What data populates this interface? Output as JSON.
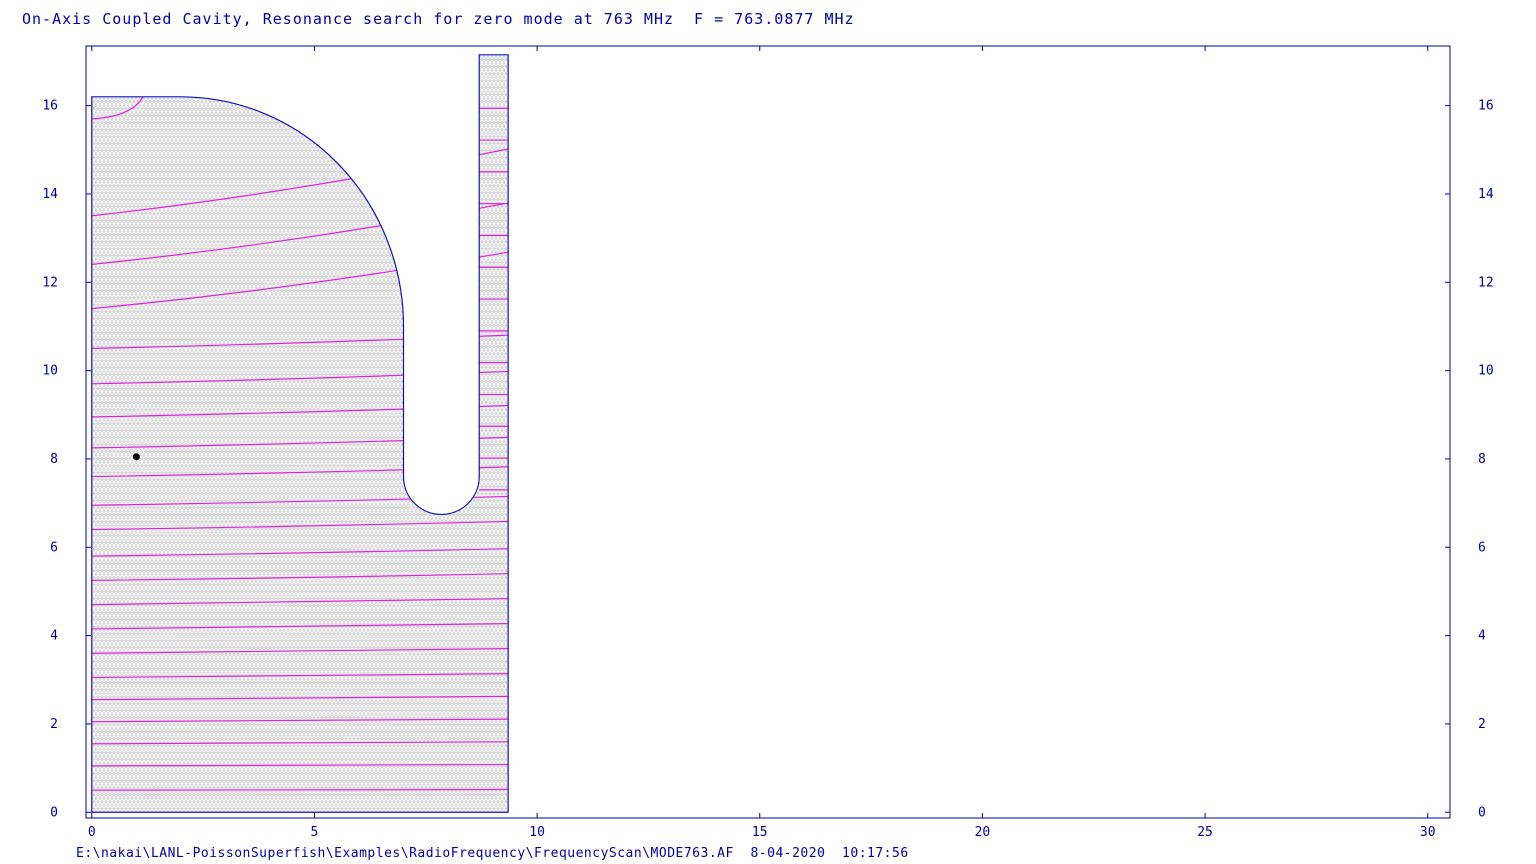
{
  "title": "On-Axis Coupled Cavity, Resonance search for zero mode at 763 MHz  F = 763.0877 MHz",
  "footer": "E:\\nakai\\LANL-PoissonSuperfish\\Examples\\RadioFrequency\\FrequencyScan\\MODE763.AF  8-04-2020  10:17:56",
  "colors": {
    "axis": "#0000aa",
    "mesh": "#bdbdbd",
    "field_lines": "#e020e0",
    "boundary": "#1010c0",
    "marker": "#000000"
  },
  "chart_data": {
    "type": "line",
    "title": "On-Axis Coupled Cavity, Resonance search for zero mode at 763 MHz  F = 763.0877 MHz",
    "xlim": [
      -0.13,
      30.5
    ],
    "ylim": [
      -0.13,
      17.35
    ],
    "x_ticks": [
      0,
      5,
      10,
      15,
      20,
      25,
      30
    ],
    "y_ticks": [
      0,
      2,
      4,
      6,
      8,
      10,
      12,
      14,
      16
    ],
    "x_tick_labels": [
      "0",
      "5",
      "10",
      "15",
      "20",
      "25",
      "30"
    ],
    "y_tick_labels": [
      "0",
      "2",
      "4",
      "6",
      "8",
      "10",
      "12",
      "14",
      "16"
    ],
    "grid": false,
    "geometry": {
      "cavity_outer_top": 16.2,
      "cavity_outer_radius_center": [
        2.0,
        11.0
      ],
      "cavity_wall_x": 7.0,
      "nose_center": [
        7.85,
        7.6
      ],
      "nose_radius": 0.85,
      "slot_x": [
        8.7,
        9.35
      ],
      "slot_top": 17.15,
      "right_edge_x": 9.35,
      "bottom": 0
    },
    "field_line_levels": [
      0.5,
      1.05,
      1.55,
      2.05,
      2.55,
      3.05,
      3.6,
      4.15,
      4.7,
      5.25,
      5.8,
      6.4,
      6.95,
      7.6,
      8.25,
      8.95,
      9.7,
      10.5,
      11.4,
      12.4,
      13.5
    ],
    "marker_point": [
      1.0,
      8.05
    ]
  }
}
